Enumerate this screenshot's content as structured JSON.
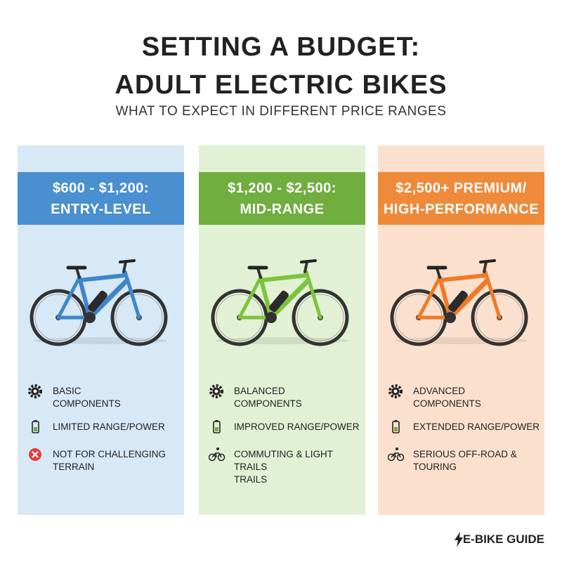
{
  "header": {
    "title": [
      "SETTING A BUDGET:",
      "ADULT ELECTRIC BIKES"
    ],
    "subtitle": "WHAT TO EXPECT IN DIFFERENT PRICE RANGES"
  },
  "columns": [
    {
      "heading": [
        "$600 - $1,200:",
        "ENTRY-LEVEL"
      ],
      "features": [
        {
          "lines": [
            "BASIC",
            "COMPONENTS"
          ]
        },
        {
          "lines": [
            "LIMITED RANGE/POWER"
          ]
        },
        {
          "lines": [
            "NOT FOR CHALLENGING",
            "TERRAIN"
          ]
        }
      ]
    },
    {
      "heading": [
        "$1,200 - $2,500:",
        "MID-RANGE"
      ],
      "features": [
        {
          "lines": [
            "BALANCED",
            "COMPONENTS"
          ]
        },
        {
          "lines": [
            "IMPROVED RANGE/POWER"
          ]
        },
        {
          "lines": [
            "COMMUTING & LIGHT TRAILS",
            "TRAILS"
          ]
        }
      ]
    },
    {
      "heading": [
        "$2,500+ PREMIUM/",
        "HIGH-PERFORMANCE"
      ],
      "features": [
        {
          "lines": [
            "ADVANCED",
            "COMPONENTS"
          ]
        },
        {
          "lines": [
            "EXTENDED RANGE/POWER"
          ]
        },
        {
          "lines": [
            "SERIOUS OFF-ROAD &",
            "TOURING"
          ]
        }
      ]
    }
  ],
  "footer": "E-BIKE GUIDE"
}
